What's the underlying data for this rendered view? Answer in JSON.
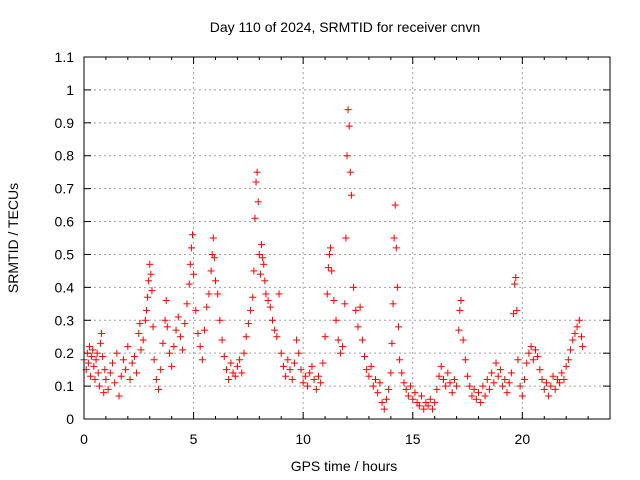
{
  "chart_data": {
    "type": "scatter",
    "title": "Day 110 of 2024, SRMTID for receiver cnvn",
    "xlabel": "GPS time / hours",
    "ylabel": "SRMTID / TECUs",
    "xlim": [
      0,
      24
    ],
    "ylim": [
      0,
      1.1
    ],
    "xticks": [
      0,
      5,
      10,
      15,
      20
    ],
    "xtick_labels": [
      "0",
      "5",
      "10",
      "15",
      "20"
    ],
    "yticks": [
      0,
      0.1,
      0.2,
      0.3,
      0.4,
      0.5,
      0.6,
      0.7,
      0.8,
      0.9,
      1,
      1.1
    ],
    "ytick_labels": [
      "0",
      "0.1",
      "0.2",
      "0.3",
      "0.4",
      "0.5",
      "0.6",
      "0.7",
      "0.8",
      "0.9",
      "1",
      "1.1"
    ],
    "grid": true,
    "marker": "plus",
    "color": "#ff0000",
    "series": [
      {
        "name": "SRMTID",
        "points": [
          [
            0.0,
            0.18
          ],
          [
            0.1,
            0.15
          ],
          [
            0.15,
            0.2
          ],
          [
            0.2,
            0.17
          ],
          [
            0.25,
            0.22
          ],
          [
            0.3,
            0.13
          ],
          [
            0.35,
            0.19
          ],
          [
            0.4,
            0.21
          ],
          [
            0.45,
            0.16
          ],
          [
            0.5,
            0.12
          ],
          [
            0.55,
            0.18
          ],
          [
            0.6,
            0.2
          ],
          [
            0.65,
            0.14
          ],
          [
            0.7,
            0.1
          ],
          [
            0.75,
            0.23
          ],
          [
            0.8,
            0.26
          ],
          [
            0.85,
            0.19
          ],
          [
            0.9,
            0.08
          ],
          [
            0.95,
            0.15
          ],
          [
            1.0,
            0.12
          ],
          [
            1.1,
            0.09
          ],
          [
            1.2,
            0.14
          ],
          [
            1.3,
            0.17
          ],
          [
            1.4,
            0.11
          ],
          [
            1.5,
            0.2
          ],
          [
            1.6,
            0.07
          ],
          [
            1.7,
            0.13
          ],
          [
            1.8,
            0.18
          ],
          [
            1.9,
            0.15
          ],
          [
            2.0,
            0.22
          ],
          [
            2.1,
            0.12
          ],
          [
            2.2,
            0.17
          ],
          [
            2.3,
            0.19
          ],
          [
            2.4,
            0.14
          ],
          [
            2.5,
            0.26
          ],
          [
            2.55,
            0.29
          ],
          [
            2.6,
            0.21
          ],
          [
            2.7,
            0.24
          ],
          [
            2.8,
            0.3
          ],
          [
            2.85,
            0.33
          ],
          [
            2.9,
            0.37
          ],
          [
            2.95,
            0.42
          ],
          [
            3.0,
            0.47
          ],
          [
            3.05,
            0.44
          ],
          [
            3.1,
            0.39
          ],
          [
            3.15,
            0.28
          ],
          [
            3.2,
            0.18
          ],
          [
            3.3,
            0.12
          ],
          [
            3.4,
            0.09
          ],
          [
            3.5,
            0.15
          ],
          [
            3.6,
            0.23
          ],
          [
            3.7,
            0.3
          ],
          [
            3.75,
            0.36
          ],
          [
            3.8,
            0.28
          ],
          [
            3.9,
            0.2
          ],
          [
            4.0,
            0.16
          ],
          [
            4.1,
            0.22
          ],
          [
            4.2,
            0.27
          ],
          [
            4.3,
            0.31
          ],
          [
            4.4,
            0.25
          ],
          [
            4.5,
            0.21
          ],
          [
            4.6,
            0.29
          ],
          [
            4.7,
            0.35
          ],
          [
            4.8,
            0.41
          ],
          [
            4.85,
            0.47
          ],
          [
            4.9,
            0.52
          ],
          [
            4.95,
            0.56
          ],
          [
            5.0,
            0.44
          ],
          [
            5.1,
            0.33
          ],
          [
            5.2,
            0.26
          ],
          [
            5.3,
            0.22
          ],
          [
            5.4,
            0.18
          ],
          [
            5.5,
            0.27
          ],
          [
            5.6,
            0.34
          ],
          [
            5.7,
            0.38
          ],
          [
            5.8,
            0.45
          ],
          [
            5.85,
            0.5
          ],
          [
            5.9,
            0.55
          ],
          [
            5.95,
            0.49
          ],
          [
            6.0,
            0.42
          ],
          [
            6.1,
            0.38
          ],
          [
            6.2,
            0.3
          ],
          [
            6.3,
            0.24
          ],
          [
            6.4,
            0.19
          ],
          [
            6.5,
            0.15
          ],
          [
            6.6,
            0.12
          ],
          [
            6.7,
            0.17
          ],
          [
            6.8,
            0.14
          ],
          [
            6.9,
            0.13
          ],
          [
            7.0,
            0.16
          ],
          [
            7.1,
            0.18
          ],
          [
            7.2,
            0.14
          ],
          [
            7.3,
            0.2
          ],
          [
            7.4,
            0.25
          ],
          [
            7.5,
            0.29
          ],
          [
            7.6,
            0.33
          ],
          [
            7.7,
            0.37
          ],
          [
            7.75,
            0.45
          ],
          [
            7.8,
            0.61
          ],
          [
            7.85,
            0.72
          ],
          [
            7.9,
            0.75
          ],
          [
            7.95,
            0.66
          ],
          [
            8.0,
            0.5
          ],
          [
            8.05,
            0.44
          ],
          [
            8.1,
            0.53
          ],
          [
            8.15,
            0.49
          ],
          [
            8.2,
            0.47
          ],
          [
            8.25,
            0.42
          ],
          [
            8.3,
            0.38
          ],
          [
            8.4,
            0.36
          ],
          [
            8.5,
            0.34
          ],
          [
            8.6,
            0.3
          ],
          [
            8.7,
            0.27
          ],
          [
            8.8,
            0.25
          ],
          [
            8.9,
            0.38
          ],
          [
            9.0,
            0.2
          ],
          [
            9.1,
            0.16
          ],
          [
            9.2,
            0.13
          ],
          [
            9.3,
            0.18
          ],
          [
            9.4,
            0.15
          ],
          [
            9.5,
            0.12
          ],
          [
            9.6,
            0.17
          ],
          [
            9.7,
            0.24
          ],
          [
            9.8,
            0.2
          ],
          [
            9.9,
            0.15
          ],
          [
            10.0,
            0.11
          ],
          [
            10.1,
            0.13
          ],
          [
            10.2,
            0.1
          ],
          [
            10.3,
            0.14
          ],
          [
            10.4,
            0.16
          ],
          [
            10.5,
            0.12
          ],
          [
            10.6,
            0.09
          ],
          [
            10.7,
            0.13
          ],
          [
            10.8,
            0.11
          ],
          [
            10.9,
            0.17
          ],
          [
            11.0,
            0.25
          ],
          [
            11.1,
            0.38
          ],
          [
            11.15,
            0.46
          ],
          [
            11.2,
            0.5
          ],
          [
            11.25,
            0.52
          ],
          [
            11.3,
            0.45
          ],
          [
            11.4,
            0.36
          ],
          [
            11.5,
            0.3
          ],
          [
            11.6,
            0.24
          ],
          [
            11.7,
            0.2
          ],
          [
            11.8,
            0.22
          ],
          [
            11.9,
            0.35
          ],
          [
            11.95,
            0.55
          ],
          [
            12.0,
            0.8
          ],
          [
            12.05,
            0.94
          ],
          [
            12.1,
            0.89
          ],
          [
            12.15,
            0.75
          ],
          [
            12.2,
            0.68
          ],
          [
            12.3,
            0.4
          ],
          [
            12.4,
            0.33
          ],
          [
            12.5,
            0.28
          ],
          [
            12.6,
            0.34
          ],
          [
            12.7,
            0.24
          ],
          [
            12.8,
            0.19
          ],
          [
            12.9,
            0.15
          ],
          [
            13.0,
            0.13
          ],
          [
            13.1,
            0.16
          ],
          [
            13.2,
            0.1
          ],
          [
            13.3,
            0.12
          ],
          [
            13.4,
            0.08
          ],
          [
            13.5,
            0.11
          ],
          [
            13.6,
            0.05
          ],
          [
            13.7,
            0.03
          ],
          [
            13.8,
            0.06
          ],
          [
            13.9,
            0.09
          ],
          [
            14.0,
            0.14
          ],
          [
            14.05,
            0.23
          ],
          [
            14.1,
            0.35
          ],
          [
            14.15,
            0.55
          ],
          [
            14.2,
            0.65
          ],
          [
            14.25,
            0.52
          ],
          [
            14.3,
            0.4
          ],
          [
            14.35,
            0.28
          ],
          [
            14.4,
            0.18
          ],
          [
            14.5,
            0.14
          ],
          [
            14.6,
            0.11
          ],
          [
            14.7,
            0.09
          ],
          [
            14.8,
            0.07
          ],
          [
            14.9,
            0.1
          ],
          [
            15.0,
            0.06
          ],
          [
            15.1,
            0.08
          ],
          [
            15.2,
            0.05
          ],
          [
            15.3,
            0.04
          ],
          [
            15.4,
            0.07
          ],
          [
            15.5,
            0.03
          ],
          [
            15.6,
            0.05
          ],
          [
            15.7,
            0.04
          ],
          [
            15.8,
            0.06
          ],
          [
            15.9,
            0.03
          ],
          [
            16.0,
            0.05
          ],
          [
            16.1,
            0.09
          ],
          [
            16.2,
            0.13
          ],
          [
            16.3,
            0.16
          ],
          [
            16.4,
            0.12
          ],
          [
            16.5,
            0.1
          ],
          [
            16.6,
            0.14
          ],
          [
            16.7,
            0.11
          ],
          [
            16.8,
            0.08
          ],
          [
            16.9,
            0.12
          ],
          [
            17.0,
            0.1
          ],
          [
            17.1,
            0.27
          ],
          [
            17.15,
            0.33
          ],
          [
            17.2,
            0.36
          ],
          [
            17.3,
            0.24
          ],
          [
            17.4,
            0.18
          ],
          [
            17.5,
            0.13
          ],
          [
            17.6,
            0.1
          ],
          [
            17.7,
            0.07
          ],
          [
            17.8,
            0.09
          ],
          [
            17.9,
            0.06
          ],
          [
            18.0,
            0.08
          ],
          [
            18.1,
            0.05
          ],
          [
            18.2,
            0.1
          ],
          [
            18.3,
            0.07
          ],
          [
            18.4,
            0.12
          ],
          [
            18.5,
            0.09
          ],
          [
            18.6,
            0.14
          ],
          [
            18.7,
            0.11
          ],
          [
            18.8,
            0.17
          ],
          [
            18.9,
            0.13
          ],
          [
            19.0,
            0.15
          ],
          [
            19.1,
            0.1
          ],
          [
            19.2,
            0.12
          ],
          [
            19.3,
            0.08
          ],
          [
            19.4,
            0.11
          ],
          [
            19.5,
            0.14
          ],
          [
            19.6,
            0.32
          ],
          [
            19.65,
            0.41
          ],
          [
            19.7,
            0.43
          ],
          [
            19.75,
            0.33
          ],
          [
            19.8,
            0.18
          ],
          [
            19.9,
            0.1
          ],
          [
            20.0,
            0.07
          ],
          [
            20.1,
            0.12
          ],
          [
            20.2,
            0.17
          ],
          [
            20.3,
            0.2
          ],
          [
            20.4,
            0.22
          ],
          [
            20.5,
            0.18
          ],
          [
            20.6,
            0.21
          ],
          [
            20.7,
            0.19
          ],
          [
            20.8,
            0.15
          ],
          [
            20.9,
            0.12
          ],
          [
            21.0,
            0.09
          ],
          [
            21.1,
            0.11
          ],
          [
            21.2,
            0.07
          ],
          [
            21.3,
            0.1
          ],
          [
            21.4,
            0.13
          ],
          [
            21.5,
            0.09
          ],
          [
            21.6,
            0.12
          ],
          [
            21.7,
            0.11
          ],
          [
            21.8,
            0.14
          ],
          [
            21.9,
            0.12
          ],
          [
            22.0,
            0.16
          ],
          [
            22.1,
            0.18
          ],
          [
            22.2,
            0.21
          ],
          [
            22.3,
            0.24
          ],
          [
            22.4,
            0.26
          ],
          [
            22.5,
            0.28
          ],
          [
            22.6,
            0.3
          ],
          [
            22.7,
            0.25
          ],
          [
            22.75,
            0.22
          ]
        ]
      }
    ]
  }
}
